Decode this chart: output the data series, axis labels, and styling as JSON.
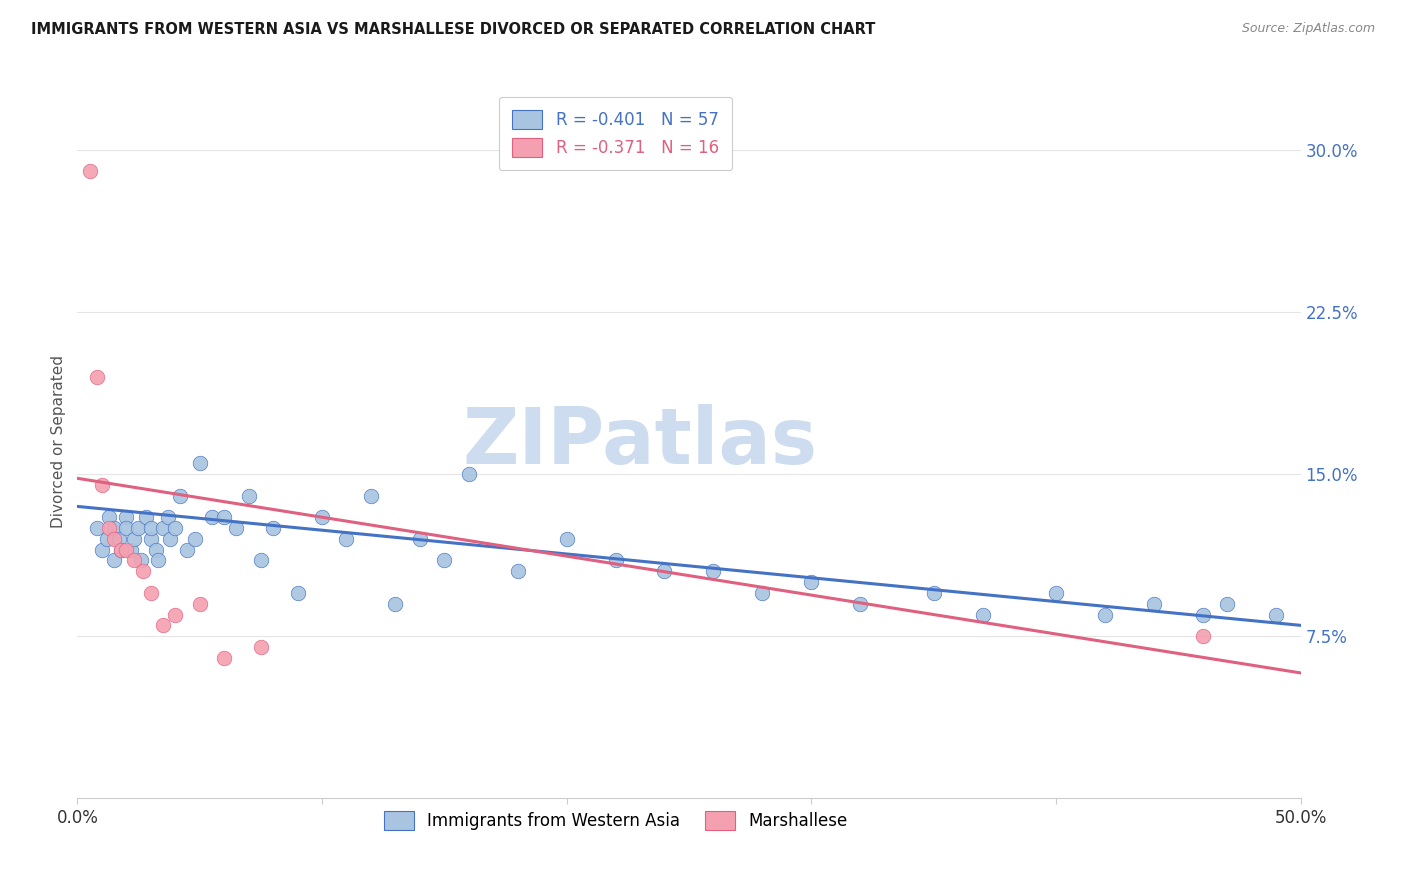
{
  "title": "IMMIGRANTS FROM WESTERN ASIA VS MARSHALLESE DIVORCED OR SEPARATED CORRELATION CHART",
  "source": "Source: ZipAtlas.com",
  "ylabel": "Divorced or Separated",
  "legend_label_blue": "Immigrants from Western Asia",
  "legend_label_pink": "Marshallese",
  "r_blue": -0.401,
  "n_blue": 57,
  "r_pink": -0.371,
  "n_pink": 16,
  "xlim": [
    0,
    0.5
  ],
  "ylim": [
    0,
    0.33
  ],
  "yticks_right": [
    0.075,
    0.15,
    0.225,
    0.3
  ],
  "ytick_right_labels": [
    "7.5%",
    "15.0%",
    "22.5%",
    "30.0%"
  ],
  "blue_color": "#a8c4e0",
  "pink_color": "#f4a0b0",
  "trendline_blue": "#4472c4",
  "trendline_pink": "#e06080",
  "watermark": "ZIPatlas",
  "watermark_color": "#cddcef",
  "blue_scatter_x": [
    0.008,
    0.01,
    0.012,
    0.013,
    0.015,
    0.015,
    0.017,
    0.018,
    0.02,
    0.02,
    0.022,
    0.023,
    0.025,
    0.026,
    0.028,
    0.03,
    0.03,
    0.032,
    0.033,
    0.035,
    0.037,
    0.038,
    0.04,
    0.042,
    0.045,
    0.048,
    0.05,
    0.055,
    0.06,
    0.065,
    0.07,
    0.075,
    0.08,
    0.09,
    0.1,
    0.11,
    0.12,
    0.13,
    0.14,
    0.15,
    0.16,
    0.18,
    0.2,
    0.22,
    0.24,
    0.26,
    0.28,
    0.3,
    0.32,
    0.35,
    0.37,
    0.4,
    0.42,
    0.44,
    0.46,
    0.47,
    0.49
  ],
  "blue_scatter_y": [
    0.125,
    0.115,
    0.12,
    0.13,
    0.11,
    0.125,
    0.12,
    0.115,
    0.13,
    0.125,
    0.115,
    0.12,
    0.125,
    0.11,
    0.13,
    0.12,
    0.125,
    0.115,
    0.11,
    0.125,
    0.13,
    0.12,
    0.125,
    0.14,
    0.115,
    0.12,
    0.155,
    0.13,
    0.13,
    0.125,
    0.14,
    0.11,
    0.125,
    0.095,
    0.13,
    0.12,
    0.14,
    0.09,
    0.12,
    0.11,
    0.15,
    0.105,
    0.12,
    0.11,
    0.105,
    0.105,
    0.095,
    0.1,
    0.09,
    0.095,
    0.085,
    0.095,
    0.085,
    0.09,
    0.085,
    0.09,
    0.085
  ],
  "pink_scatter_x": [
    0.005,
    0.008,
    0.01,
    0.013,
    0.015,
    0.018,
    0.02,
    0.023,
    0.027,
    0.03,
    0.035,
    0.04,
    0.05,
    0.06,
    0.075,
    0.46
  ],
  "pink_scatter_y": [
    0.29,
    0.195,
    0.145,
    0.125,
    0.12,
    0.115,
    0.115,
    0.11,
    0.105,
    0.095,
    0.08,
    0.085,
    0.09,
    0.065,
    0.07,
    0.075
  ],
  "grid_color": "#e5e5e5",
  "background_color": "#ffffff",
  "trendline_blue_start_y": 0.135,
  "trendline_blue_end_y": 0.08,
  "trendline_pink_start_y": 0.148,
  "trendline_pink_end_y": 0.058
}
